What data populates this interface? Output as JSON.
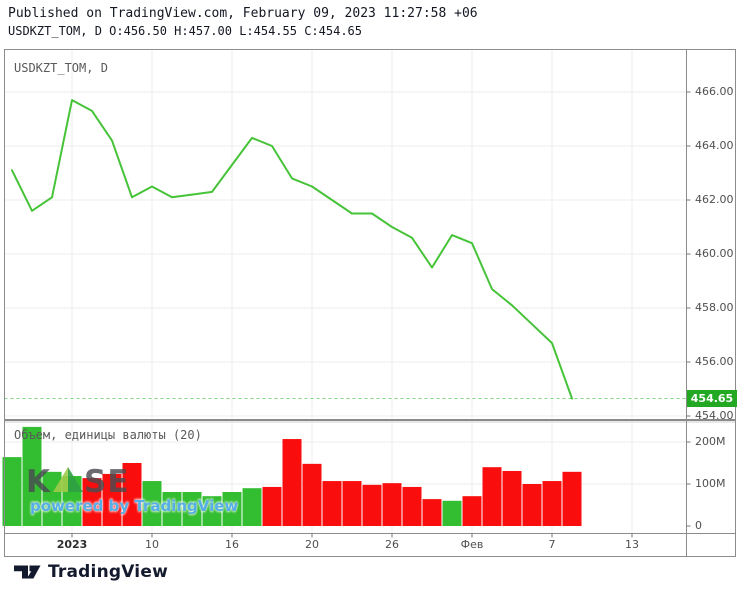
{
  "header": {
    "published_line": "Published on TradingView.com, February 09, 2023 11:27:58 +06",
    "symbol_line": "USDKZT_TOM, D O:456.50 H:457.00 L:454.55 C:454.65"
  },
  "price_pane": {
    "symbol_label": "USDKZT_TOM, D",
    "axis_labels": [
      "466.00",
      "464.00",
      "462.00",
      "460.00",
      "458.00",
      "456.00"
    ],
    "bottom_axis_label": "454.00",
    "last_price_badge": "454.65"
  },
  "volume_pane": {
    "label": "Объем, единицы валюты (20)",
    "axis_labels": [
      "200M",
      "100M",
      "0"
    ]
  },
  "x_axis": {
    "labels": [
      "2023",
      "10",
      "16",
      "20",
      "26",
      "Фев",
      "7",
      "13"
    ]
  },
  "watermark": {
    "kase_k": "K",
    "kase_se": "SE",
    "powered": "powered by TradingView"
  },
  "footer": {
    "logo_text": "TradingView"
  },
  "colors": {
    "price_line": "#46c338",
    "bar_up": "#33bd30",
    "bar_down": "#fa0d0d",
    "badge_bg": "#22a822",
    "dashed_price_line": "#84d884",
    "grid": "#ededed",
    "frame": "#8c8c8c",
    "axis_text": "#4f4f4f",
    "header_text": "#131722",
    "watermark_blue": "#55aee6",
    "logo_navy": "#141a2e",
    "kase_tri_light": "#9ecb4b",
    "kase_tri_dark": "#2f9e44"
  },
  "chart_data": {
    "type": "line",
    "title": "USDKZT_TOM, D",
    "symbol": "USDKZT_TOM",
    "interval": "D",
    "ohlc_last": {
      "open": 456.5,
      "high": 457.0,
      "low": 454.55,
      "close": 454.65
    },
    "last_price": 454.65,
    "price_axis_ticks": [
      466,
      464,
      462,
      460,
      458,
      456,
      454
    ],
    "price_axis_tick_labels": [
      "466.00",
      "464.00",
      "462.00",
      "460.00",
      "458.00",
      "456.00",
      "454.00"
    ],
    "x_tick_labels": [
      "2023",
      "10",
      "16",
      "20",
      "26",
      "Фев",
      "7",
      "13"
    ],
    "x_tick_indices": [
      3,
      7,
      11,
      15,
      19,
      23,
      27,
      31
    ],
    "close_series": [
      463.1,
      461.6,
      462.1,
      465.7,
      465.3,
      464.2,
      462.1,
      462.5,
      462.1,
      462.2,
      462.3,
      463.3,
      464.3,
      464.0,
      462.8,
      462.5,
      462.0,
      461.5,
      461.5,
      461.0,
      460.6,
      459.5,
      460.7,
      460.4,
      458.7,
      458.1,
      457.4,
      456.7,
      454.65
    ],
    "volume_series_millions": [
      164,
      236,
      129,
      119,
      114,
      124,
      150,
      107,
      81,
      81,
      71,
      81,
      90,
      93,
      207,
      148,
      107,
      107,
      98,
      102,
      93,
      64,
      60,
      71,
      140,
      131,
      100,
      107,
      129
    ],
    "volume_bar_colors": [
      "green",
      "green",
      "green",
      "green",
      "red",
      "red",
      "red",
      "green",
      "green",
      "green",
      "green",
      "green",
      "green",
      "red",
      "red",
      "red",
      "red",
      "red",
      "red",
      "red",
      "red",
      "red",
      "green",
      "red",
      "red",
      "red",
      "red",
      "red",
      "red"
    ],
    "volume_axis_tick_labels": [
      "200M",
      "100M",
      "0"
    ],
    "volume_axis_ticks_millions": [
      200,
      100,
      0
    ],
    "legend_volume": "Объем, единицы валюты (20)",
    "grid": true,
    "y_axis_side": "right"
  }
}
